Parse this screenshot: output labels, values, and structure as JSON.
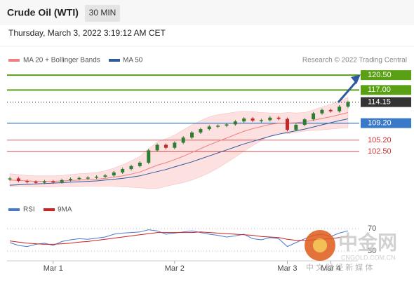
{
  "header": {
    "title": "Crude Oil (WTI)",
    "interval": "30 MIN",
    "timestamp": "Thursday, March 3, 2022 3:19:12 AM CET"
  },
  "watermark": {
    "brand": "中金网",
    "site": "CNGOLD.COM.CN",
    "slogan": "中 文 财 经 新 媒 体"
  },
  "chart_data": [
    {
      "type": "candlestick",
      "credit": "Research © 2022 Trading Central",
      "categories": [
        null,
        null,
        null,
        null,
        null,
        "Mar 1",
        null,
        null,
        null,
        null,
        null,
        null,
        null,
        null,
        null,
        null,
        null,
        null,
        null,
        "Mar 2",
        null,
        null,
        null,
        null,
        null,
        null,
        null,
        null,
        null,
        null,
        null,
        null,
        "Mar 3",
        null,
        null,
        null,
        null,
        "Mar 4",
        null,
        null
      ],
      "close": [
        96.2,
        95.6,
        95.4,
        95.2,
        95.5,
        95.3,
        95.8,
        96.1,
        96.3,
        96.4,
        96.6,
        96.9,
        97.6,
        98.4,
        99.1,
        99.9,
        102.8,
        104.1,
        103.4,
        104.6,
        105.8,
        107.0,
        107.8,
        108.4,
        108.6,
        108.9,
        109.6,
        110.3,
        109.8,
        109.9,
        110.5,
        110.2,
        107.6,
        108.8,
        110.1,
        111.5,
        112.3,
        112.0,
        113.1,
        114.15
      ],
      "up_color": "#2e7d32",
      "down_color": "#c62828",
      "series": [
        {
          "name": "MA 20 + Bollinger Bands",
          "color": "#f08080",
          "values": [
            95.8,
            95.7,
            95.6,
            95.5,
            95.5,
            95.5,
            95.6,
            95.7,
            95.8,
            95.9,
            96.0,
            96.2,
            96.5,
            96.8,
            97.2,
            97.7,
            98.5,
            99.3,
            99.9,
            100.6,
            101.4,
            102.3,
            103.2,
            104.1,
            104.9,
            105.7,
            106.5,
            107.3,
            107.9,
            108.4,
            108.9,
            109.2,
            109.2,
            109.3,
            109.5,
            109.9,
            110.3,
            110.7,
            111.2,
            111.7
          ],
          "upper": [
            97.3,
            97.1,
            96.9,
            96.8,
            96.8,
            96.8,
            96.9,
            97.1,
            97.3,
            97.4,
            97.6,
            98.0,
            98.6,
            99.4,
            100.3,
            101.4,
            103.2,
            104.8,
            105.5,
            106.4,
            107.6,
            108.8,
            109.8,
            110.7,
            111.2,
            111.5,
            111.8,
            112.0,
            111.9,
            111.7,
            111.6,
            111.5,
            111.7,
            111.6,
            111.7,
            112.3,
            113.0,
            113.6,
            114.4,
            115.3
          ],
          "lower": [
            94.3,
            94.3,
            94.3,
            94.2,
            94.2,
            94.2,
            94.3,
            94.3,
            94.3,
            94.4,
            94.4,
            94.4,
            94.4,
            94.2,
            94.1,
            94.0,
            93.8,
            93.8,
            94.3,
            94.8,
            95.2,
            95.8,
            96.6,
            97.5,
            98.6,
            99.9,
            101.2,
            102.6,
            103.9,
            105.1,
            106.2,
            106.9,
            106.7,
            107.0,
            107.3,
            107.5,
            107.6,
            107.8,
            108.0,
            108.1
          ],
          "band_color": "#fde0e0"
        },
        {
          "name": "MA 50",
          "color": "#2f5a9e",
          "values": [
            94.6,
            94.7,
            94.8,
            94.9,
            95.0,
            95.1,
            95.2,
            95.3,
            95.4,
            95.5,
            95.6,
            95.8,
            96.0,
            96.2,
            96.5,
            96.8,
            97.3,
            97.8,
            98.3,
            98.9,
            99.5,
            100.1,
            100.8,
            101.5,
            102.2,
            102.9,
            103.6,
            104.3,
            104.9,
            105.5,
            106.1,
            106.6,
            107.0,
            107.4,
            107.8,
            108.3,
            108.8,
            109.3,
            109.8,
            110.2
          ]
        }
      ],
      "levels": [
        {
          "value": 120.5,
          "label": "120.50",
          "color": "#5aa014",
          "style": "box"
        },
        {
          "value": 117,
          "label": "117.00",
          "color": "#5aa014",
          "style": "box"
        },
        {
          "value": 114.15,
          "label": "114.15",
          "color": "#333333",
          "style": "dotted"
        },
        {
          "value": 109.2,
          "label": "109.20",
          "color": "#3a78c8",
          "style": "box"
        },
        {
          "value": 105.2,
          "label": "105.20",
          "color": "#d03030",
          "style": "text"
        },
        {
          "value": 102.5,
          "label": "102.50",
          "color": "#d03030",
          "style": "text"
        }
      ],
      "ylim": [
        92.8,
        122.5
      ]
    },
    {
      "type": "line",
      "series": [
        {
          "name": "RSI",
          "color": "#4a78d0",
          "values": [
            45,
            40,
            38,
            42,
            44,
            40,
            47,
            50,
            52,
            51,
            53,
            55,
            60,
            62,
            63,
            64,
            68,
            66,
            60,
            62,
            64,
            66,
            63,
            60,
            58,
            55,
            57,
            60,
            52,
            50,
            54,
            52,
            38,
            45,
            52,
            58,
            60,
            56,
            62,
            66
          ]
        },
        {
          "name": "9MA",
          "color": "#d02020",
          "values": [
            48,
            46,
            44,
            43,
            42,
            42,
            43,
            44,
            46,
            47,
            49,
            51,
            53,
            55,
            57,
            59,
            61,
            63,
            63,
            63,
            63,
            63,
            64,
            63,
            62,
            61,
            60,
            59,
            58,
            56,
            55,
            54,
            51,
            49,
            49,
            50,
            51,
            52,
            54,
            57
          ]
        }
      ],
      "ylim": [
        12.5,
        80
      ],
      "yticks": [
        70,
        30
      ]
    }
  ]
}
